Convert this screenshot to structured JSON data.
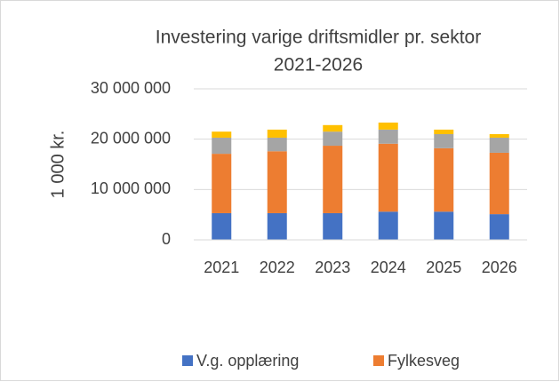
{
  "chart_data": {
    "type": "bar",
    "stacked": true,
    "title": [
      "Investering varige driftsmidler pr. sektor",
      "2021-2026"
    ],
    "y_label": "1 000 kr.",
    "categories": [
      "2021",
      "2022",
      "2023",
      "2024",
      "2025",
      "2026"
    ],
    "series": [
      {
        "name": "V.g. opplæring",
        "color": "#4472c4",
        "values": [
          5300000,
          5300000,
          5300000,
          5600000,
          5600000,
          5100000
        ]
      },
      {
        "name": "Fylkesveg",
        "color": "#ed7d31",
        "values": [
          11800000,
          12300000,
          13400000,
          13500000,
          12600000,
          12200000
        ]
      },
      {
        "color": "#a5a5a5",
        "values": [
          3200000,
          2700000,
          2800000,
          2800000,
          2800000,
          3000000
        ]
      },
      {
        "color": "#ffc000",
        "values": [
          1200000,
          1600000,
          1300000,
          1400000,
          900000,
          700000
        ]
      }
    ],
    "ylim": [
      0,
      30000000
    ],
    "yticks": [
      0,
      {
        "value": 10000000,
        "label": "10 000 000"
      },
      {
        "value": 20000000,
        "label": "20 000 000"
      },
      {
        "value": 30000000,
        "label": "30 000 000"
      }
    ],
    "grid": true,
    "legend": "bottom"
  }
}
